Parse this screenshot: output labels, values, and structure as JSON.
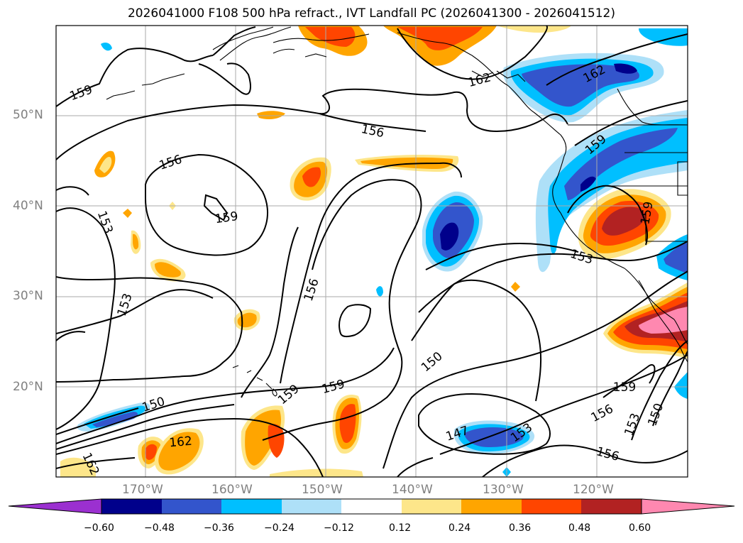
{
  "title": "2026041000 F108 500 hPa refract., IVT Landfall PC (2026041300 - 2026041512)",
  "axes": {
    "lat_labels": [
      "50°N",
      "40°N",
      "30°N",
      "20°N"
    ],
    "lon_labels": [
      "170°W",
      "160°W",
      "150°W",
      "140°W",
      "130°W",
      "120°W"
    ]
  },
  "contour_labels": [
    "159",
    "156",
    "159",
    "153",
    "153",
    "150",
    "162",
    "162",
    "156",
    "156",
    "159",
    "150",
    "147",
    "153",
    "162",
    "159",
    "159",
    "153",
    "159",
    "156",
    "153",
    "150",
    "162"
  ],
  "colorbar": {
    "tick_labels": [
      "−0.60",
      "−0.48",
      "−0.36",
      "−0.24",
      "−0.12",
      "0.12",
      "0.24",
      "0.36",
      "0.48",
      "0.60"
    ],
    "under_color": "#9b30d0",
    "over_color": "#ff88b0",
    "colors": [
      "#00008b",
      "#3355cc",
      "#00bfff",
      "#aee0f8",
      "#ffffff",
      "#fde68a",
      "#ffa500",
      "#ff4500",
      "#b22222"
    ]
  },
  "colors": {
    "contour": "#000000",
    "grid": "#aaaaaa",
    "coast": "#000000"
  }
}
